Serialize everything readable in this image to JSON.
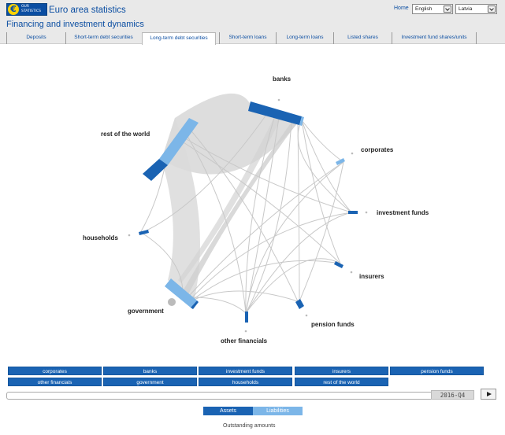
{
  "header": {
    "logo_text": "OUR STATISTICS",
    "app_title": "Euro area statistics",
    "home": "Home",
    "language": "English",
    "country": "Latvia",
    "page_title": "Financing and investment dynamics"
  },
  "tabs": [
    {
      "label": "Deposits",
      "active": false
    },
    {
      "label": "Short-term debt securities",
      "active": false
    },
    {
      "label": "Long-term debt securities",
      "active": true
    },
    {
      "label": "Short-term loans",
      "active": false
    },
    {
      "label": "Long-term loans",
      "active": false
    },
    {
      "label": "Listed shares",
      "active": false
    },
    {
      "label": "Investment fund shares/units",
      "active": false
    }
  ],
  "chord": {
    "nodes": [
      {
        "label": "banks"
      },
      {
        "label": "corporates"
      },
      {
        "label": "investment funds"
      },
      {
        "label": "insurers"
      },
      {
        "label": "pension funds"
      },
      {
        "label": "other financials"
      },
      {
        "label": "government"
      },
      {
        "label": "households"
      },
      {
        "label": "rest of the world"
      }
    ],
    "colors": {
      "assets": "#1a63b3",
      "liabilities": "#7cb6e8",
      "flow": "#d6d6d6"
    }
  },
  "sector_buttons": {
    "row1": [
      "corporates",
      "banks",
      "investment funds",
      "insurers",
      "pension funds"
    ],
    "row2": [
      "other financials",
      "government",
      "households",
      "rest of the world"
    ]
  },
  "timeline": {
    "period": "2016-Q4"
  },
  "toggle": {
    "assets": "Assets",
    "liabilities": "Liabilities"
  },
  "footnote": "Outstanding amounts"
}
